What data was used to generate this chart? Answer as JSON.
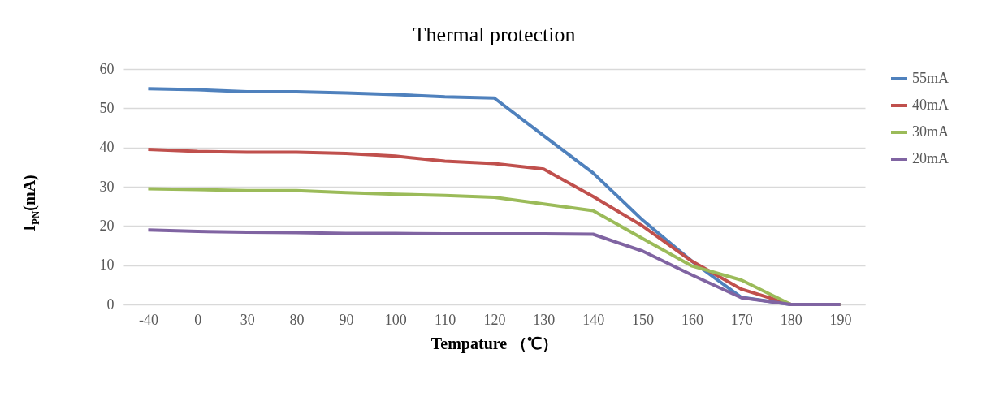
{
  "chart_data": {
    "type": "line",
    "title": "Thermal protection",
    "xlabel": "Tempature （℃）",
    "ylabel": "I$_{PN}$(mA)",
    "categories": [
      "-40",
      "0",
      "30",
      "80",
      "90",
      "100",
      "110",
      "120",
      "130",
      "140",
      "150",
      "160",
      "170",
      "180",
      "190"
    ],
    "series": [
      {
        "name": "55mA",
        "color": "#4f81bd",
        "values": [
          55,
          54.7,
          54.2,
          54.2,
          53.9,
          53.5,
          52.9,
          52.6,
          43,
          33.5,
          21.5,
          11,
          1.8,
          0,
          0
        ]
      },
      {
        "name": "40mA",
        "color": "#c0504d",
        "values": [
          39.5,
          39,
          38.8,
          38.8,
          38.5,
          37.8,
          36.5,
          35.9,
          34.5,
          27.5,
          20,
          11,
          3.9,
          0,
          0
        ]
      },
      {
        "name": "30mA",
        "color": "#9bbb59",
        "values": [
          29.5,
          29.3,
          29,
          29,
          28.5,
          28.1,
          27.8,
          27.3,
          25.6,
          23.9,
          16.8,
          9.8,
          6.2,
          0,
          0
        ]
      },
      {
        "name": "20mA",
        "color": "#8064a2",
        "values": [
          19,
          18.6,
          18.4,
          18.3,
          18.1,
          18.1,
          18,
          18,
          18,
          17.9,
          13.6,
          7.5,
          1.7,
          0,
          0
        ]
      }
    ],
    "ylim": [
      0,
      60
    ],
    "yticks": [
      0,
      10,
      20,
      30,
      40,
      50,
      60
    ],
    "grid": "y",
    "legend": "right",
    "marker": "none",
    "line_style": "solid"
  }
}
